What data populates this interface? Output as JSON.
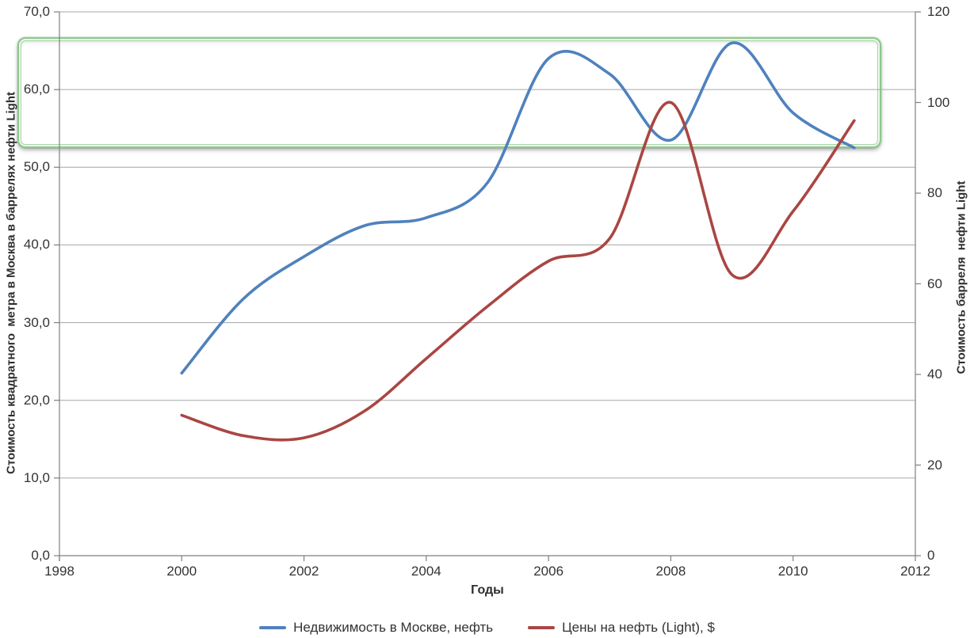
{
  "page": {
    "background": "#ffffff"
  },
  "chart_data": {
    "type": "line",
    "title": "",
    "grid": "horizontal",
    "x": [
      2000,
      2001,
      2002,
      2003,
      2004,
      2005,
      2006,
      2007,
      2008,
      2009,
      2010,
      2011
    ],
    "series": [
      {
        "id": "moscow-realty",
        "name": "Недвижимость в Москве, нефть",
        "axis": "left",
        "color": "#4f81bd",
        "values": [
          23.5,
          33,
          38.5,
          42.5,
          43.5,
          48,
          64,
          62,
          53.5,
          66,
          57,
          52.5
        ]
      },
      {
        "id": "oil-price",
        "name": "Цены на нефть (Light), $",
        "axis": "right",
        "color": "#a94643",
        "values": [
          31,
          26.5,
          26,
          32,
          43.5,
          55,
          65,
          70,
          100,
          62,
          76,
          96
        ]
      }
    ],
    "x_axis": {
      "title": "Годы",
      "min": 1998,
      "max": 2012,
      "ticks": [
        1998,
        2000,
        2002,
        2004,
        2006,
        2008,
        2010,
        2012
      ],
      "tick_labels": [
        "1998",
        "2000",
        "2002",
        "2004",
        "2006",
        "2008",
        "2010",
        "2012"
      ]
    },
    "left_axis": {
      "title": "Стоимость квадратного  метра в Москва в баррелях нефти Light",
      "min": 0,
      "max": 70,
      "ticks": [
        0,
        10,
        20,
        30,
        40,
        50,
        60,
        70
      ],
      "tick_labels": [
        "0,0",
        "10,0",
        "20,0",
        "30,0",
        "40,0",
        "50,0",
        "60,0",
        "70,0"
      ]
    },
    "right_axis": {
      "title": "Стоимость барреля  нефти Light",
      "min": 0,
      "max": 120,
      "ticks": [
        0,
        20,
        40,
        60,
        80,
        100,
        120
      ],
      "tick_labels": [
        "0",
        "20",
        "40",
        "60",
        "80",
        "100",
        "120"
      ]
    },
    "legend": {
      "position": "bottom"
    },
    "annotation": {
      "shape": "rounded-rect",
      "color": "#8cc88c",
      "x_from": 1997.31,
      "x_to": 2011.44,
      "left_axis_from": 52.45,
      "left_axis_to": 66.75
    },
    "style": {
      "gridline_color": "#a6a6a6",
      "axis_color": "#7f7f7f",
      "text_color": "#333333",
      "line_width": 3.6
    }
  }
}
